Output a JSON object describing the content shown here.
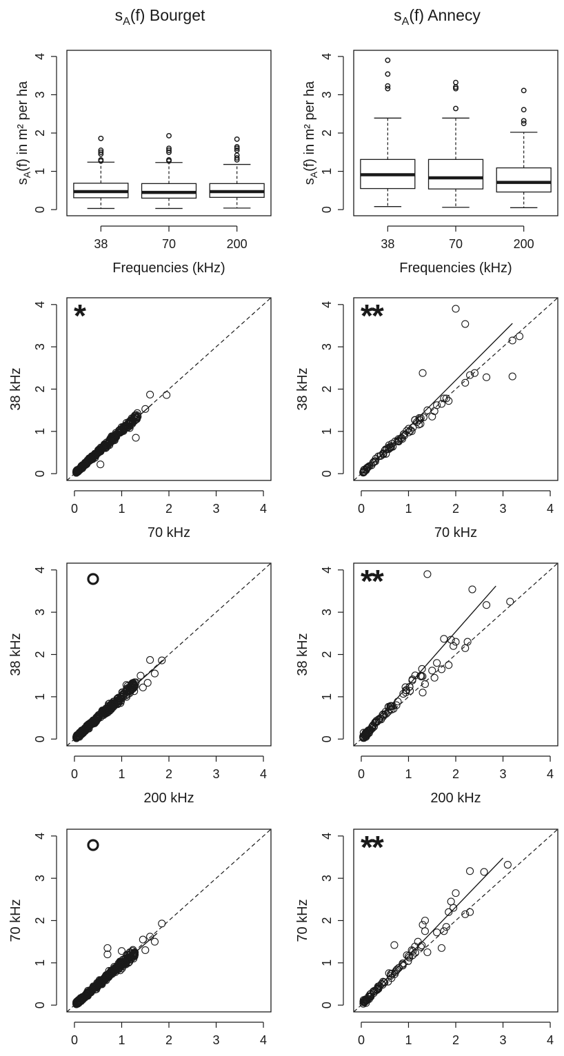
{
  "figure": {
    "columns": [
      {
        "site": "Bourget",
        "title_main": "s",
        "title_sub": "A",
        "title_rest": "(f) Bourget"
      },
      {
        "site": "Annecy",
        "title_main": "s",
        "title_sub": "A",
        "title_rest": "(f) Annecy"
      }
    ]
  },
  "chart_data": [
    {
      "id": "box-bourget",
      "type": "box",
      "site": "Bourget",
      "xlabel": "Frequencies (kHz)",
      "ylabel_main": "s",
      "ylabel_sub": "A",
      "ylabel_rest": "(f) in m² per ha",
      "ylim": [
        0,
        4
      ],
      "yticks": [
        0,
        1,
        2,
        3,
        4
      ],
      "categories": [
        "38",
        "70",
        "200"
      ],
      "boxes": [
        {
          "min": 0.03,
          "q1": 0.31,
          "median": 0.47,
          "q3": 0.69,
          "max": 1.24,
          "outliers": [
            1.27,
            1.3,
            1.45,
            1.5,
            1.55,
            1.86
          ]
        },
        {
          "min": 0.03,
          "q1": 0.3,
          "median": 0.45,
          "q3": 0.68,
          "max": 1.23,
          "outliers": [
            1.27,
            1.3,
            1.5,
            1.55,
            1.6,
            1.93
          ]
        },
        {
          "min": 0.04,
          "q1": 0.32,
          "median": 0.47,
          "q3": 0.68,
          "max": 1.18,
          "outliers": [
            1.3,
            1.35,
            1.42,
            1.55,
            1.6,
            1.64,
            1.84
          ]
        }
      ]
    },
    {
      "id": "box-annecy",
      "type": "box",
      "site": "Annecy",
      "xlabel": "Frequencies (kHz)",
      "ylabel_main": "s",
      "ylabel_sub": "A",
      "ylabel_rest": "(f) in m² per ha",
      "ylim": [
        0,
        4
      ],
      "yticks": [
        0,
        1,
        2,
        3,
        4
      ],
      "categories": [
        "38",
        "70",
        "200"
      ],
      "boxes": [
        {
          "min": 0.08,
          "q1": 0.55,
          "median": 0.91,
          "q3": 1.31,
          "max": 2.39,
          "outliers": [
            3.16,
            3.23,
            3.54,
            3.9
          ]
        },
        {
          "min": 0.06,
          "q1": 0.54,
          "median": 0.83,
          "q3": 1.31,
          "max": 2.39,
          "outliers": [
            2.64,
            3.16,
            3.2,
            3.32
          ]
        },
        {
          "min": 0.05,
          "q1": 0.46,
          "median": 0.71,
          "q3": 1.09,
          "max": 2.02,
          "outliers": [
            2.25,
            2.32,
            2.61,
            3.11
          ]
        }
      ]
    },
    {
      "id": "sc-bourget-38-70",
      "type": "scatter",
      "site": "Bourget",
      "xlabel": "70 kHz",
      "ylabel": "38 kHz",
      "xlim": [
        0,
        4
      ],
      "ylim": [
        0,
        4
      ],
      "xticks": [
        0,
        1,
        2,
        3,
        4
      ],
      "yticks": [
        0,
        1,
        2,
        3,
        4
      ],
      "significance": "*",
      "fit": {
        "x0": 0.05,
        "x1": 1.65,
        "intercept": 0.0,
        "slope": 1.0
      },
      "cloud": {
        "n": 330,
        "xmax": 1.35,
        "spread": 0.07,
        "slope": 1.02,
        "seed": 11
      },
      "points": [
        [
          1.95,
          1.86
        ],
        [
          1.6,
          1.87
        ],
        [
          1.5,
          1.53
        ],
        [
          1.25,
          1.32
        ],
        [
          1.3,
          0.85
        ],
        [
          0.55,
          0.22
        ],
        [
          1.0,
          1.1
        ],
        [
          1.1,
          1.2
        ]
      ]
    },
    {
      "id": "sc-annecy-38-70",
      "type": "scatter",
      "site": "Annecy",
      "xlabel": "70 kHz",
      "ylabel": "38 kHz",
      "xlim": [
        0,
        4
      ],
      "ylim": [
        0,
        4
      ],
      "xticks": [
        0,
        1,
        2,
        3,
        4
      ],
      "yticks": [
        0,
        1,
        2,
        3,
        4
      ],
      "significance": "**",
      "fit": {
        "x0": 0.05,
        "x1": 3.2,
        "intercept": -0.03,
        "slope": 1.12
      },
      "cloud": {
        "n": 65,
        "xmax": 1.35,
        "spread": 0.09,
        "slope": 1.03,
        "seed": 23
      },
      "points": [
        [
          2.0,
          3.9
        ],
        [
          2.2,
          3.54
        ],
        [
          3.35,
          3.25
        ],
        [
          3.2,
          3.15
        ],
        [
          3.2,
          2.3
        ],
        [
          2.65,
          2.28
        ],
        [
          2.3,
          2.33
        ],
        [
          2.4,
          2.38
        ],
        [
          2.2,
          2.15
        ],
        [
          1.3,
          2.38
        ],
        [
          1.8,
          1.78
        ],
        [
          1.85,
          1.72
        ],
        [
          1.7,
          1.65
        ],
        [
          1.75,
          1.78
        ],
        [
          1.6,
          1.62
        ],
        [
          1.55,
          1.48
        ],
        [
          1.4,
          1.5
        ],
        [
          1.5,
          1.35
        ]
      ]
    },
    {
      "id": "sc-bourget-38-200",
      "type": "scatter",
      "site": "Bourget",
      "xlabel": "200 kHz",
      "ylabel": "38 kHz",
      "xlim": [
        0,
        4
      ],
      "ylim": [
        0,
        4
      ],
      "xticks": [
        0,
        1,
        2,
        3,
        4
      ],
      "yticks": [
        0,
        1,
        2,
        3,
        4
      ],
      "significance": "o",
      "fit": {
        "x0": 0.05,
        "x1": 1.9,
        "intercept": 0.0,
        "slope": 0.99
      },
      "cloud": {
        "n": 330,
        "xmax": 1.3,
        "spread": 0.1,
        "slope": 1.0,
        "seed": 37
      },
      "points": [
        [
          1.85,
          1.86
        ],
        [
          1.6,
          1.87
        ],
        [
          1.7,
          1.55
        ],
        [
          1.55,
          1.33
        ],
        [
          1.4,
          1.5
        ],
        [
          1.45,
          1.22
        ],
        [
          1.25,
          1.2
        ],
        [
          1.1,
          1.28
        ]
      ]
    },
    {
      "id": "sc-annecy-38-200",
      "type": "scatter",
      "site": "Annecy",
      "xlabel": "200 kHz",
      "ylabel": "38 kHz",
      "xlim": [
        0,
        4
      ],
      "ylim": [
        0,
        4
      ],
      "xticks": [
        0,
        1,
        2,
        3,
        4
      ],
      "yticks": [
        0,
        1,
        2,
        3,
        4
      ],
      "significance": "**",
      "fit": {
        "x0": 0.05,
        "x1": 2.85,
        "intercept": 0.0,
        "slope": 1.27
      },
      "cloud": {
        "n": 80,
        "xmax": 1.3,
        "spread": 0.12,
        "slope": 1.22,
        "seed": 51
      },
      "points": [
        [
          1.4,
          3.9
        ],
        [
          2.35,
          3.54
        ],
        [
          3.15,
          3.25
        ],
        [
          2.65,
          3.17
        ],
        [
          2.25,
          2.3
        ],
        [
          2.0,
          2.3
        ],
        [
          1.9,
          2.35
        ],
        [
          1.75,
          2.37
        ],
        [
          1.95,
          2.2
        ],
        [
          2.2,
          2.15
        ],
        [
          1.85,
          1.75
        ],
        [
          1.7,
          1.65
        ],
        [
          1.6,
          1.8
        ],
        [
          1.5,
          1.62
        ],
        [
          1.55,
          1.45
        ],
        [
          1.35,
          1.3
        ],
        [
          1.3,
          1.1
        ],
        [
          0.05,
          0.15
        ],
        [
          0.1,
          0.05
        ]
      ]
    },
    {
      "id": "sc-bourget-70-200",
      "type": "scatter",
      "site": "Bourget",
      "xlabel": "200 kHz",
      "ylabel": "70 kHz",
      "xlim": [
        0,
        4
      ],
      "ylim": [
        0,
        4
      ],
      "xticks": [
        0,
        1,
        2,
        3,
        4
      ],
      "yticks": [
        0,
        1,
        2,
        3,
        4
      ],
      "significance": "o",
      "fit": {
        "x0": 0.05,
        "x1": 1.75,
        "intercept": 0.0,
        "slope": 0.97
      },
      "cloud": {
        "n": 330,
        "xmax": 1.3,
        "spread": 0.09,
        "slope": 0.98,
        "seed": 67
      },
      "points": [
        [
          1.85,
          1.93
        ],
        [
          1.6,
          1.62
        ],
        [
          1.7,
          1.5
        ],
        [
          1.45,
          1.55
        ],
        [
          1.5,
          1.3
        ],
        [
          0.7,
          1.35
        ],
        [
          0.7,
          1.2
        ],
        [
          1.0,
          1.28
        ],
        [
          1.25,
          1.1
        ]
      ]
    },
    {
      "id": "sc-annecy-70-200",
      "type": "scatter",
      "site": "Annecy",
      "xlabel": "200 kHz",
      "ylabel": "70 kHz",
      "xlim": [
        0,
        4
      ],
      "ylim": [
        0,
        4
      ],
      "xticks": [
        0,
        1,
        2,
        3,
        4
      ],
      "yticks": [
        0,
        1,
        2,
        3,
        4
      ],
      "significance": "**",
      "fit": {
        "x0": 0.05,
        "x1": 3.0,
        "intercept": 0.0,
        "slope": 1.16
      },
      "cloud": {
        "n": 75,
        "xmax": 1.3,
        "spread": 0.12,
        "slope": 1.12,
        "seed": 83
      },
      "points": [
        [
          3.1,
          3.32
        ],
        [
          2.6,
          3.15
        ],
        [
          2.3,
          3.17
        ],
        [
          2.0,
          2.65
        ],
        [
          1.95,
          2.3
        ],
        [
          1.9,
          2.45
        ],
        [
          1.85,
          2.2
        ],
        [
          2.3,
          2.2
        ],
        [
          2.2,
          2.15
        ],
        [
          1.75,
          1.75
        ],
        [
          1.6,
          1.72
        ],
        [
          1.8,
          1.85
        ],
        [
          1.7,
          1.35
        ],
        [
          1.35,
          2.0
        ],
        [
          1.3,
          1.9
        ],
        [
          1.35,
          1.75
        ],
        [
          1.4,
          1.25
        ],
        [
          1.2,
          1.5
        ],
        [
          0.7,
          1.42
        ],
        [
          0.1,
          0.05
        ],
        [
          0.05,
          0.12
        ]
      ]
    }
  ]
}
